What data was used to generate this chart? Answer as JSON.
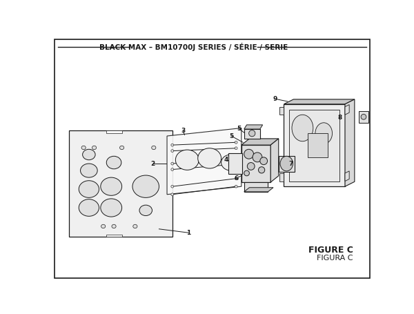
{
  "title": "BLACK MAX – BM10700J SERIES / SÉRIE / SERIE",
  "figure_label": "FIGURE C",
  "figura_label": "FIGURA C",
  "bg_color": "#ffffff",
  "lc": "#1a1a1a",
  "fill_light": "#f0f0f0",
  "fill_mid": "#e0e0e0",
  "fill_dark": "#c8c8c8",
  "figure_width": 6.0,
  "figure_height": 4.55,
  "dpi": 100
}
